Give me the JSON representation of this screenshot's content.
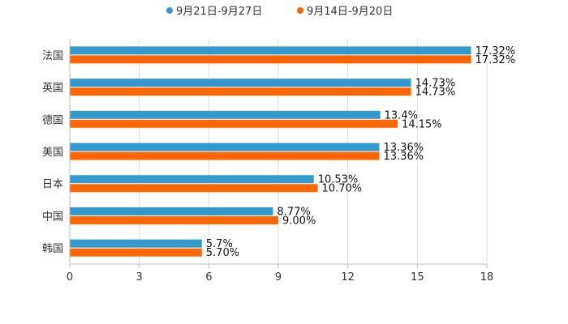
{
  "chart_data": {
    "type": "bar",
    "orientation": "horizontal",
    "categories": [
      "法国",
      "英国",
      "德国",
      "美国",
      "日本",
      "中国",
      "韩国"
    ],
    "series": [
      {
        "name": "9月21日-9月27日",
        "color": "#3399cc",
        "values": [
          17.32,
          14.73,
          13.4,
          13.36,
          10.53,
          8.77,
          5.7
        ],
        "labels": [
          "17.32%",
          "14.73%",
          "13.4%",
          "13.36%",
          "10.53%",
          "8.77%",
          "5.7%"
        ]
      },
      {
        "name": "9月14日-9月20日",
        "color": "#ff6600",
        "values": [
          17.32,
          14.73,
          14.15,
          13.36,
          10.7,
          9.0,
          5.7
        ],
        "labels": [
          "17.32%",
          "14.73%",
          "14.15%",
          "13.36%",
          "10.70%",
          "9.00%",
          "5.70%"
        ]
      }
    ],
    "xlim": [
      0,
      18
    ],
    "xticks": [
      "0",
      "3",
      "6",
      "9",
      "12",
      "15",
      "18"
    ],
    "legend_position": "top-center",
    "grid": true
  }
}
